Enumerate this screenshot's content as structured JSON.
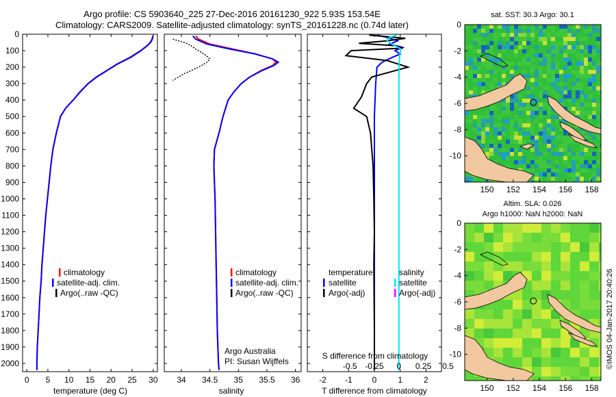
{
  "header": {
    "line1": "Argo profile: CS 5903640_225 27-Dec-2016 20161230_922 5.93S 153.54E",
    "line2": "Climatology: CARS2009. Satellite-adjusted climatology: synTS_20161228.nc (0.74d later)"
  },
  "colors": {
    "climatology": "#ff0000",
    "satellite": "#0000ff",
    "argo": "#000000",
    "sal_satellite": "#00e5ee",
    "sal_argo": "#ff00ff",
    "land": "#f2c8a0",
    "ocean_bg": "#2fbf3a"
  },
  "chart_data": [
    {
      "id": "temp",
      "type": "line",
      "title": "",
      "xlabel": "temperature (deg C)",
      "ylabel": "",
      "xlim": [
        -1,
        31
      ],
      "ylim": [
        2050,
        0
      ],
      "xticks": [
        0,
        5,
        10,
        15,
        20,
        25,
        30
      ],
      "yticks": [
        0,
        100,
        200,
        300,
        400,
        500,
        600,
        700,
        800,
        900,
        1000,
        1100,
        1200,
        1300,
        1400,
        1500,
        1600,
        1700,
        1800,
        1900,
        2000
      ],
      "legend": [
        "climatology",
        "satellite-adj. clim.",
        "Argo(..raw -QC)"
      ],
      "series": [
        {
          "name": "climatology",
          "color": "#ff0000",
          "points": [
            [
              29.9,
              10
            ],
            [
              29.7,
              30
            ],
            [
              29.3,
              50
            ],
            [
              28.5,
              70
            ],
            [
              27.0,
              100
            ],
            [
              24.5,
              140
            ],
            [
              21.5,
              180
            ],
            [
              19.0,
              220
            ],
            [
              16.5,
              260
            ],
            [
              14.5,
              300
            ],
            [
              12.6,
              350
            ],
            [
              11.0,
              400
            ],
            [
              9.2,
              450
            ],
            [
              8.0,
              500
            ],
            [
              7.0,
              600
            ],
            [
              6.2,
              700
            ],
            [
              5.7,
              800
            ],
            [
              5.3,
              900
            ],
            [
              4.9,
              1000
            ],
            [
              4.5,
              1100
            ],
            [
              4.2,
              1200
            ],
            [
              3.9,
              1300
            ],
            [
              3.6,
              1400
            ],
            [
              3.4,
              1500
            ],
            [
              3.1,
              1600
            ],
            [
              2.9,
              1700
            ],
            [
              2.7,
              1800
            ],
            [
              2.5,
              1900
            ],
            [
              2.4,
              2000
            ],
            [
              2.4,
              2040
            ]
          ]
        },
        {
          "name": "satellite-adj. clim.",
          "color": "#0000ff",
          "points": [
            [
              30.0,
              10
            ],
            [
              29.8,
              30
            ],
            [
              29.4,
              50
            ],
            [
              28.6,
              70
            ],
            [
              27.1,
              100
            ],
            [
              24.7,
              140
            ],
            [
              21.6,
              180
            ],
            [
              19.1,
              220
            ],
            [
              16.6,
              260
            ],
            [
              14.6,
              300
            ],
            [
              12.7,
              350
            ],
            [
              11.0,
              400
            ],
            [
              9.2,
              450
            ],
            [
              8.0,
              500
            ],
            [
              7.0,
              600
            ],
            [
              6.2,
              700
            ],
            [
              5.7,
              800
            ],
            [
              5.3,
              900
            ],
            [
              4.9,
              1000
            ],
            [
              4.5,
              1100
            ],
            [
              4.2,
              1200
            ],
            [
              3.9,
              1300
            ],
            [
              3.6,
              1400
            ],
            [
              3.4,
              1500
            ],
            [
              3.1,
              1600
            ],
            [
              2.9,
              1700
            ],
            [
              2.7,
              1800
            ],
            [
              2.5,
              1900
            ],
            [
              2.4,
              2000
            ],
            [
              2.4,
              2040
            ]
          ]
        }
      ]
    },
    {
      "id": "sal",
      "type": "line",
      "xlabel": "salinity",
      "xlim": [
        33.7,
        36.1
      ],
      "ylim": [
        2050,
        0
      ],
      "xticks": [
        34,
        34.5,
        35,
        35.5,
        36
      ],
      "legend": [
        "climatology",
        "satellite-adj. clim.",
        "Argo(..raw -QC)"
      ],
      "annotation": [
        "Argo Australia",
        "PI: Susan Wijffels"
      ],
      "series": [
        {
          "name": "climatology",
          "color": "#ff0000",
          "points": [
            [
              34.25,
              10
            ],
            [
              34.3,
              30
            ],
            [
              34.5,
              60
            ],
            [
              34.9,
              90
            ],
            [
              35.3,
              120
            ],
            [
              35.6,
              150
            ],
            [
              35.66,
              170
            ],
            [
              35.6,
              190
            ],
            [
              35.4,
              220
            ],
            [
              35.2,
              260
            ],
            [
              35.05,
              300
            ],
            [
              34.92,
              350
            ],
            [
              34.82,
              400
            ],
            [
              34.73,
              500
            ],
            [
              34.66,
              600
            ],
            [
              34.58,
              700
            ],
            [
              34.57,
              800
            ],
            [
              34.58,
              900
            ],
            [
              34.59,
              1000
            ],
            [
              34.6,
              1200
            ],
            [
              34.61,
              1400
            ],
            [
              34.62,
              1600
            ],
            [
              34.63,
              1800
            ],
            [
              34.65,
              2000
            ],
            [
              34.66,
              2040
            ]
          ]
        },
        {
          "name": "satellite-adj. clim.",
          "color": "#0000ff",
          "points": [
            [
              34.2,
              10
            ],
            [
              34.25,
              30
            ],
            [
              34.45,
              60
            ],
            [
              34.85,
              90
            ],
            [
              35.3,
              120
            ],
            [
              35.6,
              150
            ],
            [
              35.7,
              170
            ],
            [
              35.62,
              190
            ],
            [
              35.42,
              220
            ],
            [
              35.2,
              260
            ],
            [
              35.05,
              300
            ],
            [
              34.92,
              350
            ],
            [
              34.82,
              400
            ],
            [
              34.73,
              500
            ],
            [
              34.66,
              600
            ],
            [
              34.58,
              700
            ],
            [
              34.57,
              800
            ],
            [
              34.58,
              900
            ],
            [
              34.59,
              1000
            ],
            [
              34.6,
              1200
            ],
            [
              34.61,
              1400
            ],
            [
              34.62,
              1600
            ],
            [
              34.63,
              1800
            ],
            [
              34.65,
              2000
            ],
            [
              34.66,
              2040
            ]
          ]
        },
        {
          "name": "Argo(..raw -QC)",
          "color": "#000000",
          "dashed": true,
          "points": [
            [
              33.85,
              30
            ],
            [
              34.05,
              50
            ],
            [
              34.15,
              65
            ],
            [
              34.25,
              90
            ],
            [
              34.4,
              120
            ],
            [
              34.5,
              150
            ],
            [
              34.45,
              170
            ],
            [
              34.3,
              200
            ],
            [
              34.05,
              240
            ],
            [
              33.85,
              280
            ]
          ]
        }
      ]
    },
    {
      "id": "diff",
      "type": "line",
      "xlabel": "T difference from climatology",
      "xlabel_top": "S difference from climatology",
      "xlim": [
        -2.6,
        2.6
      ],
      "ylim": [
        2050,
        0
      ],
      "xticks": [
        -2,
        -1,
        0,
        1,
        2
      ],
      "xtick_labels_top": [
        "-0.5",
        "-0.25",
        "0",
        "0.25",
        "0.5"
      ],
      "xtick_values_top": [
        -0.5,
        -0.25,
        0,
        0.25,
        0.5
      ],
      "legend_temperature_title": "temperature",
      "legend_salinity_title": "salinity",
      "legend": [
        "satellite",
        "Argo(-adj)"
      ],
      "series": [
        {
          "name": "T satellite",
          "color": "#0000ff",
          "points": [
            [
              0.1,
              5
            ],
            [
              0.5,
              20
            ],
            [
              0.9,
              40
            ],
            [
              0.6,
              60
            ],
            [
              1.1,
              80
            ],
            [
              0.8,
              100
            ],
            [
              1.0,
              120
            ],
            [
              0.7,
              140
            ],
            [
              0.3,
              170
            ],
            [
              0.1,
              200
            ],
            [
              0.05,
              300
            ],
            [
              0,
              500
            ],
            [
              0,
              1000
            ],
            [
              0,
              2040
            ]
          ]
        },
        {
          "name": "T Argo(-adj)",
          "color": "#000000",
          "points": [
            [
              -0.2,
              5
            ],
            [
              0.5,
              15
            ],
            [
              1.2,
              25
            ],
            [
              0.5,
              40
            ],
            [
              -0.6,
              55
            ],
            [
              0.8,
              70
            ],
            [
              1.1,
              85
            ],
            [
              -0.9,
              100
            ],
            [
              -1.1,
              130
            ],
            [
              0.5,
              160
            ],
            [
              0.9,
              180
            ],
            [
              1.3,
              200
            ],
            [
              0.6,
              230
            ],
            [
              -0.1,
              260
            ],
            [
              -0.3,
              300
            ],
            [
              -0.5,
              380
            ],
            [
              -0.8,
              450
            ],
            [
              -0.3,
              500
            ],
            [
              -0.15,
              600
            ],
            [
              -0.1,
              700
            ],
            [
              -0.05,
              800
            ],
            [
              -0.02,
              1000
            ],
            [
              0,
              1200
            ],
            [
              -0.02,
              1400
            ],
            [
              0,
              1800
            ],
            [
              0,
              2040
            ]
          ]
        },
        {
          "name": "S satellite",
          "color": "#00e5ee",
          "axis": "top",
          "points": [
            [
              -0.02,
              5
            ],
            [
              -0.1,
              20
            ],
            [
              -0.12,
              40
            ],
            [
              -0.07,
              60
            ],
            [
              0.02,
              90
            ],
            [
              0.01,
              120
            ],
            [
              0.0,
              200
            ],
            [
              0.0,
              600
            ],
            [
              0.0,
              1200
            ],
            [
              0.0,
              2040
            ]
          ]
        }
      ]
    },
    {
      "id": "sst_map",
      "type": "heatmap",
      "title": "sat. SST: 30.3 Argo: 30.1",
      "xlim": [
        148.3,
        158.7
      ],
      "ylim": [
        -12,
        0
      ],
      "xticks": [
        150,
        152,
        154,
        156,
        158
      ],
      "yticks": [
        0,
        -2,
        -4,
        -6,
        -8,
        -10
      ],
      "marker": [
        153.54,
        -5.93
      ]
    },
    {
      "id": "sla_map",
      "type": "heatmap",
      "title": "Altim. SLA: 0.026",
      "subtitle": "Argo h1000: NaN h2000: NaN",
      "xlim": [
        148.3,
        158.7
      ],
      "ylim": [
        -12,
        0
      ],
      "xticks": [
        150,
        152,
        154,
        156,
        158
      ],
      "yticks": [
        0,
        -2,
        -4,
        -6,
        -8,
        -10
      ],
      "marker": [
        153.54,
        -5.93
      ]
    }
  ],
  "credit": "©IMOS 04-Jan-2017 20:40:26"
}
